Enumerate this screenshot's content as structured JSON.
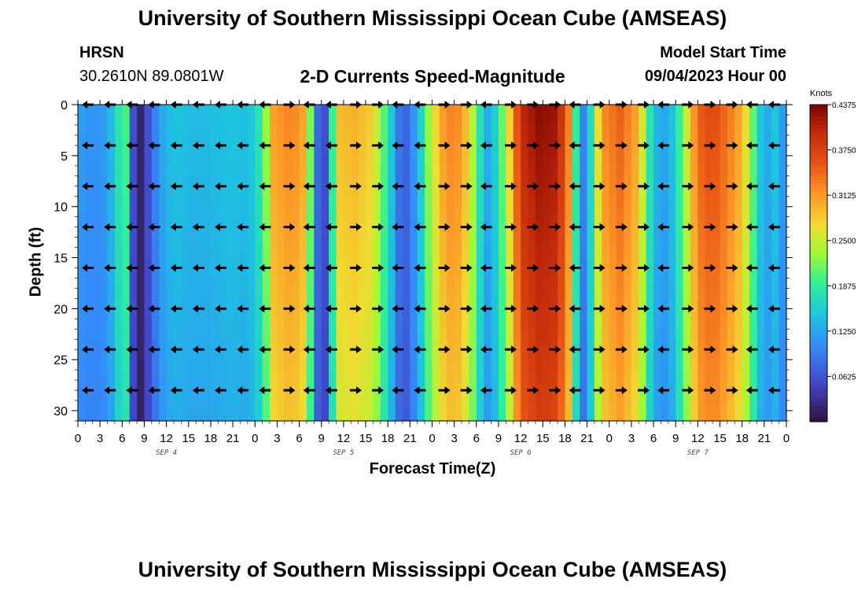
{
  "header": {
    "title": "University of Southern Mississippi Ocean Cube (AMSEAS)",
    "station": "HRSN",
    "coords": "30.2610N  89.0801W",
    "subtitle": "2-D Currents Speed-Magnitude",
    "model_start_label": "Model Start Time",
    "model_start_value": "09/04/2023 Hour 00"
  },
  "footer": {
    "title": "University of Southern Mississippi Ocean Cube (AMSEAS)"
  },
  "chart_data": {
    "type": "heatmap",
    "title": "2-D Currents Speed-Magnitude",
    "xlabel": "Forecast Time(Z)",
    "ylabel": "Depth (ft)",
    "x_ticks": [
      "0",
      "3",
      "6",
      "9",
      "12",
      "15",
      "18",
      "21",
      "0",
      "3",
      "6",
      "9",
      "12",
      "15",
      "18",
      "21",
      "0",
      "3",
      "6",
      "9",
      "12",
      "15",
      "18",
      "21",
      "0",
      "3",
      "6",
      "9",
      "12",
      "15",
      "18",
      "21",
      "0"
    ],
    "day_labels": [
      {
        "label": "SEP 4",
        "hour": 12
      },
      {
        "label": "SEP 5",
        "hour": 36
      },
      {
        "label": "SEP 6",
        "hour": 60
      },
      {
        "label": "SEP 7",
        "hour": 84
      }
    ],
    "xlim_hours": [
      0,
      96
    ],
    "ylim_ft": [
      31,
      0
    ],
    "y_ticks": [
      "0",
      "5",
      "10",
      "15",
      "20",
      "25",
      "30"
    ],
    "colorbar": {
      "unit": "Knots",
      "min": 0,
      "max": 0.4375,
      "ticks": [
        "0.4375",
        "0.3750",
        "0.3125",
        "0.2500",
        "0.1875",
        "0.1250",
        "0.0625"
      ]
    },
    "surface_speed_knots": [
      {
        "hour": 0,
        "value": 0.12
      },
      {
        "hour": 2,
        "value": 0.11
      },
      {
        "hour": 4,
        "value": 0.12
      },
      {
        "hour": 5.5,
        "value": 0.18
      },
      {
        "hour": 6.5,
        "value": 0.2
      },
      {
        "hour": 7.5,
        "value": 0.06
      },
      {
        "hour": 8.5,
        "value": 0.02
      },
      {
        "hour": 9.5,
        "value": 0.06
      },
      {
        "hour": 11,
        "value": 0.12
      },
      {
        "hour": 13,
        "value": 0.15
      },
      {
        "hour": 15,
        "value": 0.14
      },
      {
        "hour": 18,
        "value": 0.14
      },
      {
        "hour": 21,
        "value": 0.15
      },
      {
        "hour": 23,
        "value": 0.14
      },
      {
        "hour": 25,
        "value": 0.19
      },
      {
        "hour": 26.5,
        "value": 0.31
      },
      {
        "hour": 29,
        "value": 0.33
      },
      {
        "hour": 31,
        "value": 0.3
      },
      {
        "hour": 32,
        "value": 0.14
      },
      {
        "hour": 33,
        "value": 0.02
      },
      {
        "hour": 34,
        "value": 0.1
      },
      {
        "hour": 35,
        "value": 0.29
      },
      {
        "hour": 37.5,
        "value": 0.3
      },
      {
        "hour": 40,
        "value": 0.28
      },
      {
        "hour": 42,
        "value": 0.18
      },
      {
        "hour": 44,
        "value": 0.06
      },
      {
        "hour": 46,
        "value": 0.13
      },
      {
        "hour": 48,
        "value": 0.26
      },
      {
        "hour": 50,
        "value": 0.33
      },
      {
        "hour": 52,
        "value": 0.32
      },
      {
        "hour": 54,
        "value": 0.22
      },
      {
        "hour": 55,
        "value": 0.13
      },
      {
        "hour": 56,
        "value": 0.13
      },
      {
        "hour": 58,
        "value": 0.24
      },
      {
        "hour": 60,
        "value": 0.4
      },
      {
        "hour": 62.5,
        "value": 0.43
      },
      {
        "hour": 65,
        "value": 0.42
      },
      {
        "hour": 67,
        "value": 0.3
      },
      {
        "hour": 68,
        "value": 0.08
      },
      {
        "hour": 69,
        "value": 0.12
      },
      {
        "hour": 71,
        "value": 0.32
      },
      {
        "hour": 73.5,
        "value": 0.35
      },
      {
        "hour": 76,
        "value": 0.3
      },
      {
        "hour": 78,
        "value": 0.14
      },
      {
        "hour": 80,
        "value": 0.12
      },
      {
        "hour": 82,
        "value": 0.22
      },
      {
        "hour": 84,
        "value": 0.35
      },
      {
        "hour": 86,
        "value": 0.37
      },
      {
        "hour": 88,
        "value": 0.34
      },
      {
        "hour": 90,
        "value": 0.3
      },
      {
        "hour": 92,
        "value": 0.18
      },
      {
        "hour": 93,
        "value": 0.12
      },
      {
        "hour": 94.5,
        "value": 0.15
      },
      {
        "hour": 96,
        "value": 0.1
      }
    ],
    "arrow_depths_ft": [
      0,
      4,
      8,
      12,
      16,
      20,
      24,
      28
    ],
    "arrow_direction": "mostly westward (pointing left), eastward during strong-current periods"
  }
}
